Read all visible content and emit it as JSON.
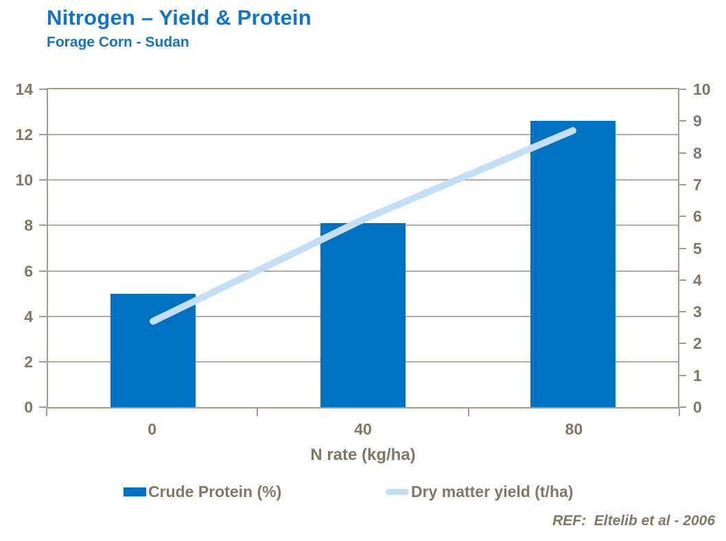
{
  "header": {
    "title": "Nitrogen – Yield & Protein",
    "subtitle": "Forage Corn - Sudan"
  },
  "chart_data": {
    "type": "bar",
    "combo": "bar + line, dual y-axes",
    "title": "Nitrogen – Yield & Protein",
    "subtitle": "Forage Corn - Sudan",
    "categories": [
      "0",
      "40",
      "80"
    ],
    "series": [
      {
        "name": "Crude Protein (%)",
        "type": "bar",
        "axis": "left",
        "values": [
          5.0,
          8.1,
          12.6
        ],
        "color": "#0070C0"
      },
      {
        "name": "Dry matter yield (t/ha)",
        "type": "line",
        "axis": "right",
        "values": [
          2.7,
          5.9,
          8.7
        ],
        "color": "#C4DEF6"
      }
    ],
    "xlabel": "N rate (kg/ha)",
    "left_axis": {
      "min": 0,
      "max": 14,
      "step": 2,
      "ticks": [
        "0",
        "2",
        "4",
        "6",
        "8",
        "10",
        "12",
        "14"
      ]
    },
    "right_axis": {
      "min": 0,
      "max": 10,
      "step": 1,
      "ticks": [
        "0",
        "1",
        "2",
        "3",
        "4",
        "5",
        "6",
        "7",
        "8",
        "9",
        "10"
      ]
    },
    "grid": "horizontal gridlines at left-axis major steps",
    "legend_position": "bottom"
  },
  "footer": {
    "reference": "REF:  Eltelib et al - 2006"
  },
  "colors": {
    "title_blue": "#1274C8",
    "bar_blue": "#0070C0",
    "line_light_blue": "#C4DEF6",
    "axis_text_brown": "#857663",
    "gridline_tan": "#B5ABA1",
    "axis_border_tan": "#A79B8F",
    "background": "#FFFFFF"
  }
}
